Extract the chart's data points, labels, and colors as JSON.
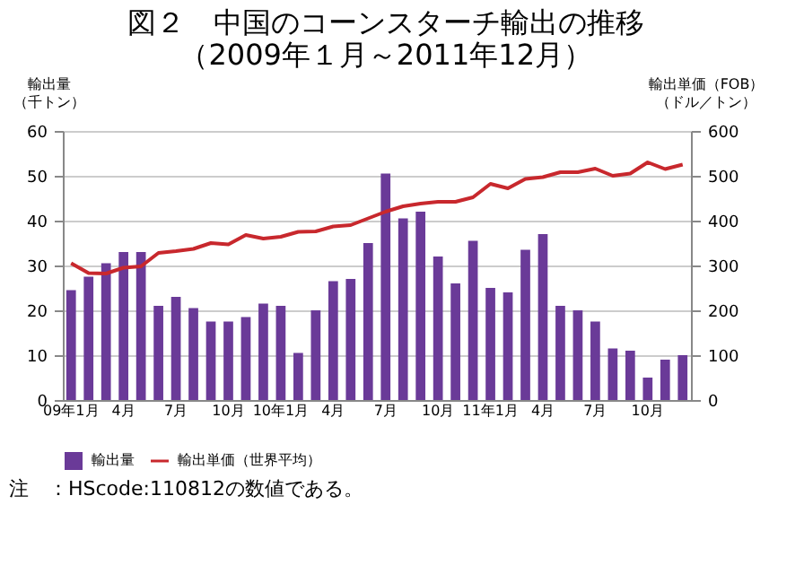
{
  "chart_data": {
    "type": "bar",
    "title": [
      "図２　中国のコーンスターチ輸出の推移",
      "（2009年１月～2011年12月）"
    ],
    "ylabel": [
      "輸出量",
      "（千トン）"
    ],
    "y2label": [
      "輸出単価（FOB）",
      "（ドル／トン）"
    ],
    "categories": [
      "09年1月",
      null,
      null,
      "4月",
      null,
      null,
      "7月",
      null,
      null,
      "10月",
      null,
      null,
      "10年1月",
      null,
      null,
      "4月",
      null,
      null,
      "7月",
      null,
      null,
      "10月",
      null,
      null,
      "11年1月",
      null,
      null,
      "4月",
      null,
      null,
      "7月",
      null,
      null,
      "10月",
      null,
      null
    ],
    "series": [
      {
        "name": "輸出量",
        "color": "#6a3a98",
        "values": [
          24.5,
          27.5,
          30.5,
          33,
          33,
          21,
          23,
          20.5,
          17.5,
          17.5,
          18.5,
          21.5,
          21,
          10.5,
          20,
          26.5,
          27,
          35,
          50.5,
          40.5,
          42,
          32,
          26,
          35.5,
          25,
          24,
          33.5,
          37,
          21,
          20,
          17.5,
          11.5,
          11,
          5,
          9,
          10
        ]
      },
      {
        "name": "輸出単価（世界平均）",
        "type": "line",
        "axis": "y2",
        "color": "#c8282d",
        "values": [
          305,
          283,
          282,
          295,
          298,
          328,
          332,
          337,
          350,
          347,
          368,
          360,
          364,
          375,
          376,
          387,
          390,
          405,
          420,
          432,
          438,
          442,
          442,
          452,
          482,
          472,
          493,
          497,
          508,
          508,
          516,
          500,
          505,
          530,
          515,
          525
        ]
      }
    ],
    "ylim": [
      0,
      60
    ],
    "yticks": [
      0,
      10,
      20,
      30,
      40,
      50,
      60
    ],
    "y2lim": [
      0,
      600
    ],
    "y2ticks": [
      0,
      100,
      200,
      300,
      400,
      500,
      600
    ],
    "grid": "y",
    "legend": "bottom",
    "annotations": [
      "注　：HScode:110812の数値である。"
    ]
  }
}
